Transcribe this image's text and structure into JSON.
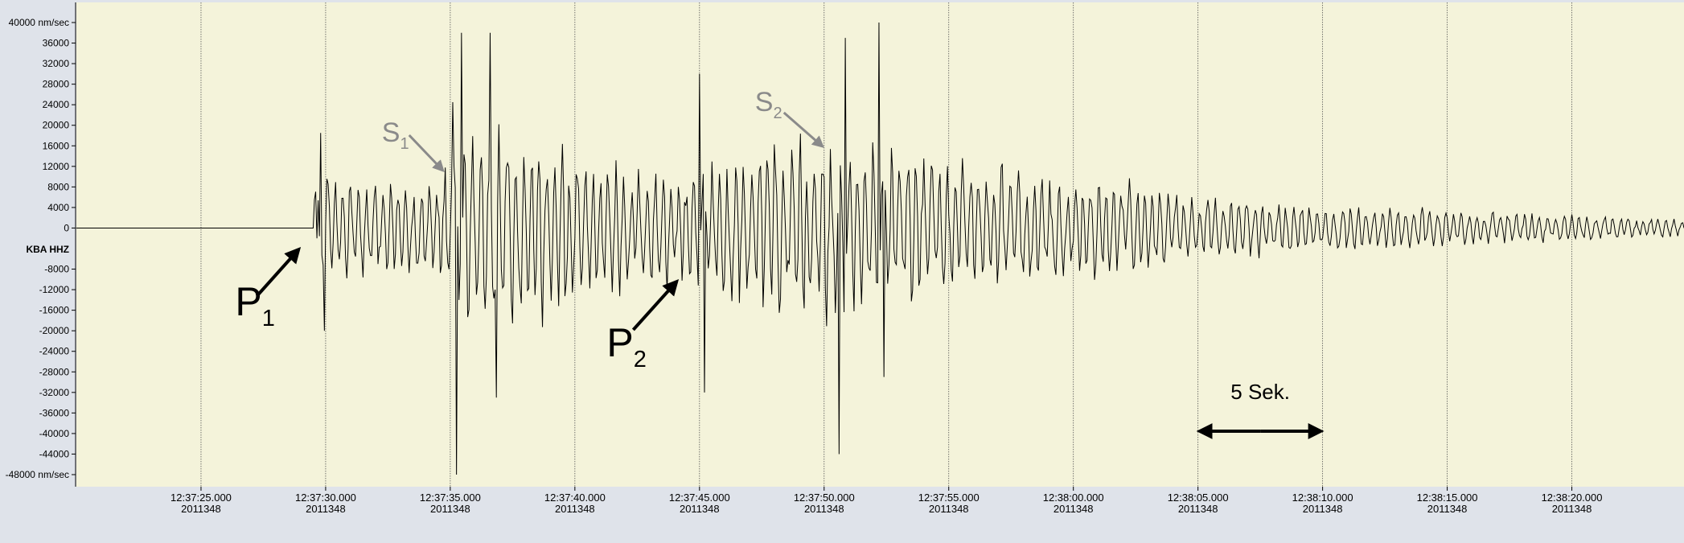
{
  "chart_data": {
    "type": "line",
    "station_label": "KBA HHZ",
    "y_unit": "nm/sec",
    "ylim": [
      -48000,
      40000
    ],
    "y_ticks": [
      {
        "value": 40000,
        "label": "40000 nm/sec"
      },
      {
        "value": 36000,
        "label": "36000"
      },
      {
        "value": 32000,
        "label": "32000"
      },
      {
        "value": 28000,
        "label": "28000"
      },
      {
        "value": 24000,
        "label": "24000"
      },
      {
        "value": 20000,
        "label": "20000"
      },
      {
        "value": 16000,
        "label": "16000"
      },
      {
        "value": 12000,
        "label": "12000"
      },
      {
        "value": 8000,
        "label": "8000"
      },
      {
        "value": 4000,
        "label": "4000"
      },
      {
        "value": 0,
        "label": "0"
      },
      {
        "value": -8000,
        "label": "-8000"
      },
      {
        "value": -12000,
        "label": "-12000"
      },
      {
        "value": -16000,
        "label": "-16000"
      },
      {
        "value": -20000,
        "label": "-20000"
      },
      {
        "value": -24000,
        "label": "-24000"
      },
      {
        "value": -28000,
        "label": "-28000"
      },
      {
        "value": -32000,
        "label": "-32000"
      },
      {
        "value": -36000,
        "label": "-36000"
      },
      {
        "value": -40000,
        "label": "-40000"
      },
      {
        "value": -44000,
        "label": "-44000"
      },
      {
        "value": -48000,
        "label": "-48000 nm/sec"
      }
    ],
    "x_range": [
      "12:37:20.000",
      "12:38:24.500"
    ],
    "x_ticks": [
      {
        "time": "12:37:25.000",
        "date": "2011348"
      },
      {
        "time": "12:37:30.000",
        "date": "2011348"
      },
      {
        "time": "12:37:35.000",
        "date": "2011348"
      },
      {
        "time": "12:37:40.000",
        "date": "2011348"
      },
      {
        "time": "12:37:45.000",
        "date": "2011348"
      },
      {
        "time": "12:37:50.000",
        "date": "2011348"
      },
      {
        "time": "12:37:55.000",
        "date": "2011348"
      },
      {
        "time": "12:38:00.000",
        "date": "2011348"
      },
      {
        "time": "12:38:05.000",
        "date": "2011348"
      },
      {
        "time": "12:38:10.000",
        "date": "2011348"
      },
      {
        "time": "12:38:15.000",
        "date": "2011348"
      },
      {
        "time": "12:38:20.000",
        "date": "2011348"
      }
    ],
    "grid": true,
    "series": [
      {
        "points": [
          [
            "12:37:20.000",
            0
          ],
          [
            "12:37:29.500",
            0
          ],
          [
            "12:37:29.650",
            -2000
          ],
          [
            "12:37:29.800",
            18500
          ],
          [
            "12:37:29.950",
            -20000
          ],
          [
            "12:37:35.100",
            24500
          ],
          [
            "12:37:35.250",
            -48000
          ],
          [
            "12:37:35.450",
            38000
          ],
          [
            "12:37:36.600",
            38000
          ],
          [
            "12:37:36.850",
            -33000
          ],
          [
            "12:37:45.000",
            30000
          ],
          [
            "12:37:45.200",
            -32000
          ],
          [
            "12:37:50.600",
            -44000
          ],
          [
            "12:37:50.850",
            37000
          ],
          [
            "12:37:52.200",
            40000
          ],
          [
            "12:37:52.400",
            -29000
          ],
          [
            "12:38:24.500",
            0
          ]
        ]
      }
    ],
    "annotations": {
      "p1": {
        "main": "P",
        "sub": "1",
        "time": "12:37:29.500"
      },
      "s1": {
        "main": "S",
        "sub": "1",
        "time": "12:37:34.900"
      },
      "p2": {
        "main": "P",
        "sub": "2",
        "time": "12:37:44.600"
      },
      "s2": {
        "main": "S",
        "sub": "2",
        "time": "12:37:50.000"
      },
      "scale_label": "5 Sek.",
      "scale_start": "12:38:05.000",
      "scale_end": "12:38:10.000"
    },
    "colors": {
      "plot_bg": "#f4f3da",
      "trace": "#000000",
      "grid": "#555555",
      "annotation_gray": "#8a8a8a"
    }
  }
}
